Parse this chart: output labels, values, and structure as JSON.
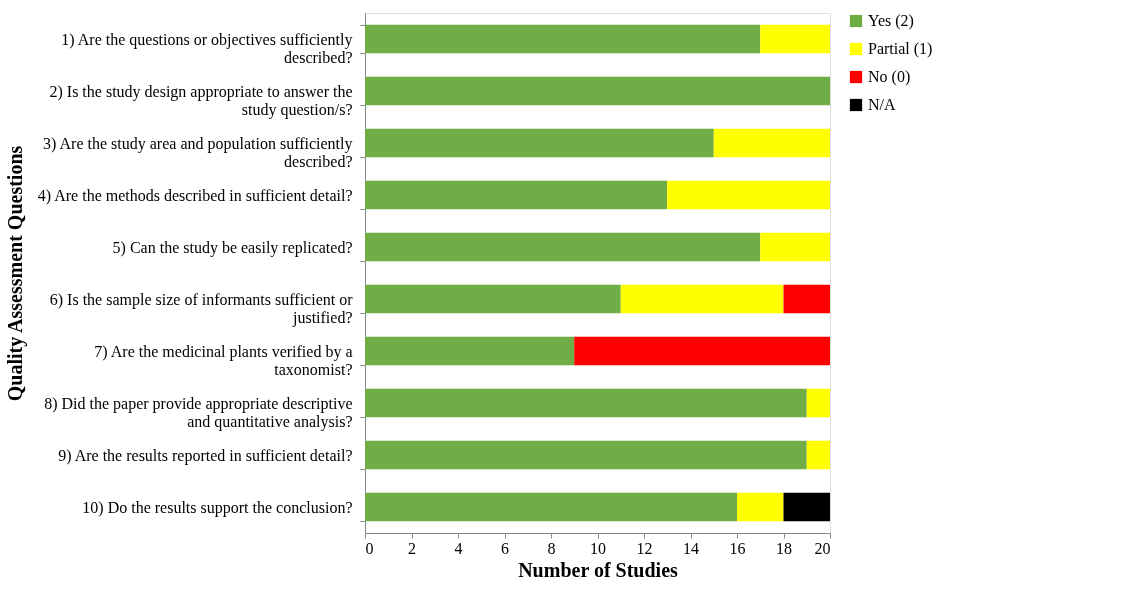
{
  "chart_data": {
    "type": "bar",
    "orientation": "horizontal",
    "stacked": true,
    "xlabel": "Number of Studies",
    "ylabel": "Quality Assessment Questions",
    "categories": [
      "1) Are the questions or objectives sufficiently described?",
      "2) Is the study design appropriate to answer the study question/s?",
      "3) Are the study area and population sufficiently described?",
      "4) Are the methods described in sufficient detail?",
      "5) Can the study be easily replicated?",
      "6) Is the sample size of informants sufficient or justified?",
      "7) Are the medicinal plants verified by a taxonomist?",
      "8) Did the paper provide appropriate descriptive and quantitative analysis?",
      "9) Are the results reported in sufficient detail?",
      "10) Do the results support the conclusion?"
    ],
    "series": [
      {
        "name": "Yes (2)",
        "color": "#70ad47",
        "values": [
          17,
          20,
          15,
          13,
          17,
          11,
          9,
          19,
          19,
          16
        ]
      },
      {
        "name": "Partial (1)",
        "color": "#ffff00",
        "values": [
          3,
          null,
          5,
          7,
          3,
          7,
          null,
          1,
          1,
          2
        ]
      },
      {
        "name": "No (0)",
        "color": "#ff0000",
        "values": [
          null,
          null,
          null,
          null,
          null,
          2,
          11,
          null,
          null,
          null
        ]
      },
      {
        "name": "N/A",
        "color": "#000000",
        "values": [
          null,
          null,
          null,
          null,
          null,
          null,
          null,
          null,
          null,
          2
        ]
      }
    ],
    "xlim": [
      0,
      20
    ],
    "xticks": [
      0,
      2,
      4,
      6,
      8,
      10,
      12,
      14,
      16,
      18,
      20
    ],
    "grid": false,
    "legend": "right"
  }
}
